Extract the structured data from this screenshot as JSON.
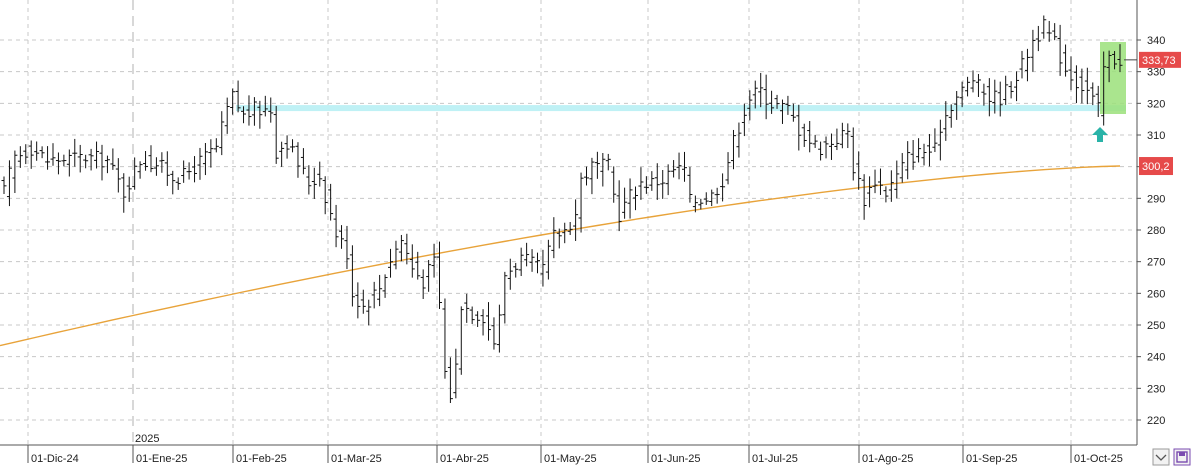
{
  "chart_data": {
    "type": "ohlc",
    "ylim": [
      215,
      350
    ],
    "y_ticks": [
      220,
      230,
      240,
      250,
      260,
      270,
      280,
      290,
      300,
      310,
      320,
      330,
      340
    ],
    "x_ticks": [
      "01-Dic-24",
      "01-Ene-25",
      "01-Feb-25",
      "01-Mar-25",
      "01-Abr-25",
      "01-May-25",
      "01-Jun-25",
      "01-Jul-25",
      "01-Ago-25",
      "01-Sep-25",
      "01-Oct-25"
    ],
    "year_marker": "2025",
    "grid": true,
    "last_price_label": "333,73",
    "ma_price_label": "300,2",
    "last_price": 333.73,
    "ma_last": 300.2,
    "support_level": 318.5,
    "ma_start": 243.5,
    "price_path": [
      [
        0,
        292
      ],
      [
        2,
        303
      ],
      [
        5,
        306
      ],
      [
        8,
        302
      ],
      [
        15,
        303
      ],
      [
        19,
        302
      ],
      [
        22,
        292
      ],
      [
        25,
        302
      ],
      [
        28,
        301
      ],
      [
        31,
        297
      ],
      [
        33,
        297
      ],
      [
        35,
        300
      ],
      [
        39,
        306
      ],
      [
        41,
        318
      ],
      [
        42,
        322
      ],
      [
        44,
        316
      ],
      [
        46,
        318
      ],
      [
        49,
        318
      ],
      [
        50,
        305
      ],
      [
        52,
        308
      ],
      [
        54,
        301
      ],
      [
        56,
        295
      ],
      [
        58,
        297
      ],
      [
        61,
        279
      ],
      [
        63,
        273
      ],
      [
        64,
        260
      ],
      [
        66,
        256
      ],
      [
        69,
        262
      ],
      [
        71,
        271
      ],
      [
        73,
        277
      ],
      [
        75,
        268
      ],
      [
        77,
        264
      ],
      [
        79,
        270
      ],
      [
        80,
        257
      ],
      [
        81,
        235
      ],
      [
        82,
        228
      ],
      [
        83,
        237
      ],
      [
        84,
        257
      ],
      [
        86,
        254
      ],
      [
        88,
        253
      ],
      [
        90,
        245
      ],
      [
        91,
        252
      ],
      [
        92,
        266
      ],
      [
        95,
        271
      ],
      [
        98,
        268
      ],
      [
        99,
        268
      ],
      [
        101,
        278
      ],
      [
        103,
        280
      ],
      [
        105,
        285
      ],
      [
        106,
        296
      ],
      [
        108,
        300
      ],
      [
        111,
        300
      ],
      [
        112,
        291
      ],
      [
        113,
        285
      ],
      [
        115,
        291
      ],
      [
        117,
        295
      ],
      [
        119,
        295
      ],
      [
        121,
        296
      ],
      [
        123,
        299
      ],
      [
        125,
        299
      ],
      [
        126,
        289
      ],
      [
        128,
        290
      ],
      [
        130,
        291
      ],
      [
        132,
        296
      ],
      [
        134,
        308
      ],
      [
        136,
        318
      ],
      [
        137,
        322
      ],
      [
        139,
        324
      ],
      [
        141,
        320
      ],
      [
        144,
        318
      ],
      [
        146,
        312
      ],
      [
        148,
        308
      ],
      [
        150,
        306
      ],
      [
        153,
        309
      ],
      [
        155,
        311
      ],
      [
        156,
        300
      ],
      [
        158,
        290
      ],
      [
        160,
        296
      ],
      [
        162,
        292
      ],
      [
        164,
        297
      ],
      [
        166,
        303
      ],
      [
        169,
        305
      ],
      [
        171,
        305
      ],
      [
        172,
        313
      ],
      [
        174,
        320
      ],
      [
        176,
        324
      ],
      [
        178,
        328
      ],
      [
        179,
        325
      ],
      [
        181,
        322
      ],
      [
        183,
        322
      ],
      [
        185,
        326
      ],
      [
        187,
        332
      ],
      [
        189,
        340
      ],
      [
        191,
        344
      ],
      [
        193,
        339
      ],
      [
        195,
        331
      ],
      [
        197,
        327
      ],
      [
        199,
        324
      ],
      [
        201,
        318
      ],
      [
        202,
        331
      ],
      [
        203,
        334
      ]
    ]
  }
}
